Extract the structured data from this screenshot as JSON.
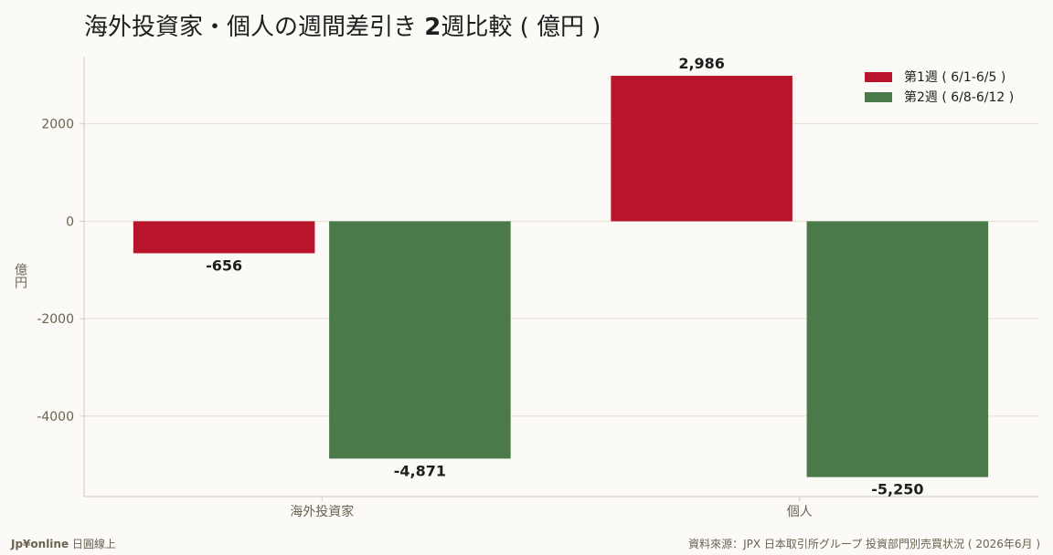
{
  "title_regular": "海外投資家・個人の週間差引き ",
  "title_bold": "2",
  "title_rest": "週比較 ( 億円 )",
  "footer": {
    "brand": "Jp¥online",
    "brand_suffix": " 日圓線上",
    "source": "資料來源：JPX 日本取引所グループ 投資部門別売買状況 ( 2026年6月 )"
  },
  "colors": {
    "week1": "#b8142c",
    "week2": "#4a7a4a",
    "grid": "#e2ded2",
    "axis": "#cfcabd",
    "tick_text": "#6b6350",
    "value_text": "#1e1e1e"
  },
  "chart_data": {
    "type": "bar",
    "title": "海外投資家・個人の週間差引き 2週比較 ( 億円 )",
    "xlabel": "",
    "ylabel": "億円",
    "categories": [
      "海外投資家",
      "個人"
    ],
    "series": [
      {
        "name": "第1週 ( 6/1-6/5 )",
        "values": [
          -656,
          2986
        ],
        "labels": [
          "-656",
          "2,986"
        ]
      },
      {
        "name": "第2週 ( 6/8-6/12 )",
        "values": [
          -4871,
          -5250
        ],
        "labels": [
          "-4,871",
          "-5,250"
        ]
      }
    ],
    "yticks": [
      2000,
      0,
      -2000,
      -4000
    ],
    "ytick_labels": [
      "2000",
      "0",
      "-2000",
      "-4000"
    ],
    "ylim": [
      -5650,
      3380
    ],
    "grid": true,
    "legend_position": "top-right"
  }
}
